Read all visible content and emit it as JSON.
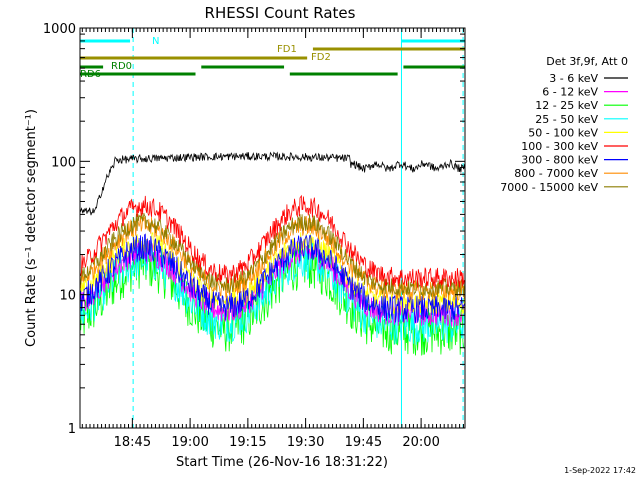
{
  "chart_data": {
    "type": "line",
    "title": "RHESSI Count Rates",
    "xlabel": "Start Time (26-Nov-16 18:31:22)",
    "ylabel": "Count Rate (s⁻¹ detector segment⁻¹)",
    "ylog": true,
    "ylim": [
      1,
      1000
    ],
    "xlim_minutes": [
      0,
      100
    ],
    "x_ticks": [
      {
        "label": "18:45",
        "t": 13.6
      },
      {
        "label": "19:00",
        "t": 28.6
      },
      {
        "label": "19:15",
        "t": 43.6
      },
      {
        "label": "19:30",
        "t": 58.6
      },
      {
        "label": "19:45",
        "t": 73.6
      },
      {
        "label": "20:00",
        "t": 88.6
      }
    ],
    "y_ticks": [
      {
        "label": "1",
        "v": 1
      },
      {
        "label": "10",
        "v": 10
      },
      {
        "label": "100",
        "v": 100
      },
      {
        "label": "1000",
        "v": 1000
      }
    ],
    "legend_header": "Det 3f,9f, Att 0",
    "legend_placement": "right",
    "series": [
      {
        "name": "3 - 6 keV",
        "color": "#000000"
      },
      {
        "name": "6 - 12 keV",
        "color": "#ff00ff"
      },
      {
        "name": "12 - 25 keV",
        "color": "#00ff00"
      },
      {
        "name": "25 - 50 keV",
        "color": "#00ffff"
      },
      {
        "name": "50 - 100 keV",
        "color": "#ffff00"
      },
      {
        "name": "100 - 300 keV",
        "color": "#ff0000"
      },
      {
        "name": "300 - 800 keV",
        "color": "#0000ff"
      },
      {
        "name": "800 - 7000 keV",
        "color": "#ff8c00"
      },
      {
        "name": "7000 - 15000 keV",
        "color": "#8b7d00"
      }
    ],
    "state_bars": [
      {
        "label": "N",
        "color": "#00ffff",
        "segments": [
          [
            0,
            13
          ],
          [
            83.5,
            100
          ]
        ]
      },
      {
        "label": "FD1",
        "color": "#999000",
        "segments": [
          [
            60.5,
            100
          ]
        ]
      },
      {
        "label": "FD2",
        "color": "#999000",
        "segments": [
          [
            0,
            59
          ]
        ]
      },
      {
        "label": "RD0",
        "color": "#008000",
        "segments": [
          [
            0,
            6
          ],
          [
            31.5,
            53
          ],
          [
            84,
            100
          ]
        ]
      },
      {
        "label": "RD6",
        "color": "#008000",
        "segments": [
          [
            0,
            30
          ],
          [
            54.5,
            82.5
          ]
        ]
      }
    ],
    "vlines_solid": [
      0,
      83.5
    ],
    "vlines_dashed": [
      13.8,
      99.5
    ]
  },
  "timestamp": "1-Sep-2022 17:42"
}
